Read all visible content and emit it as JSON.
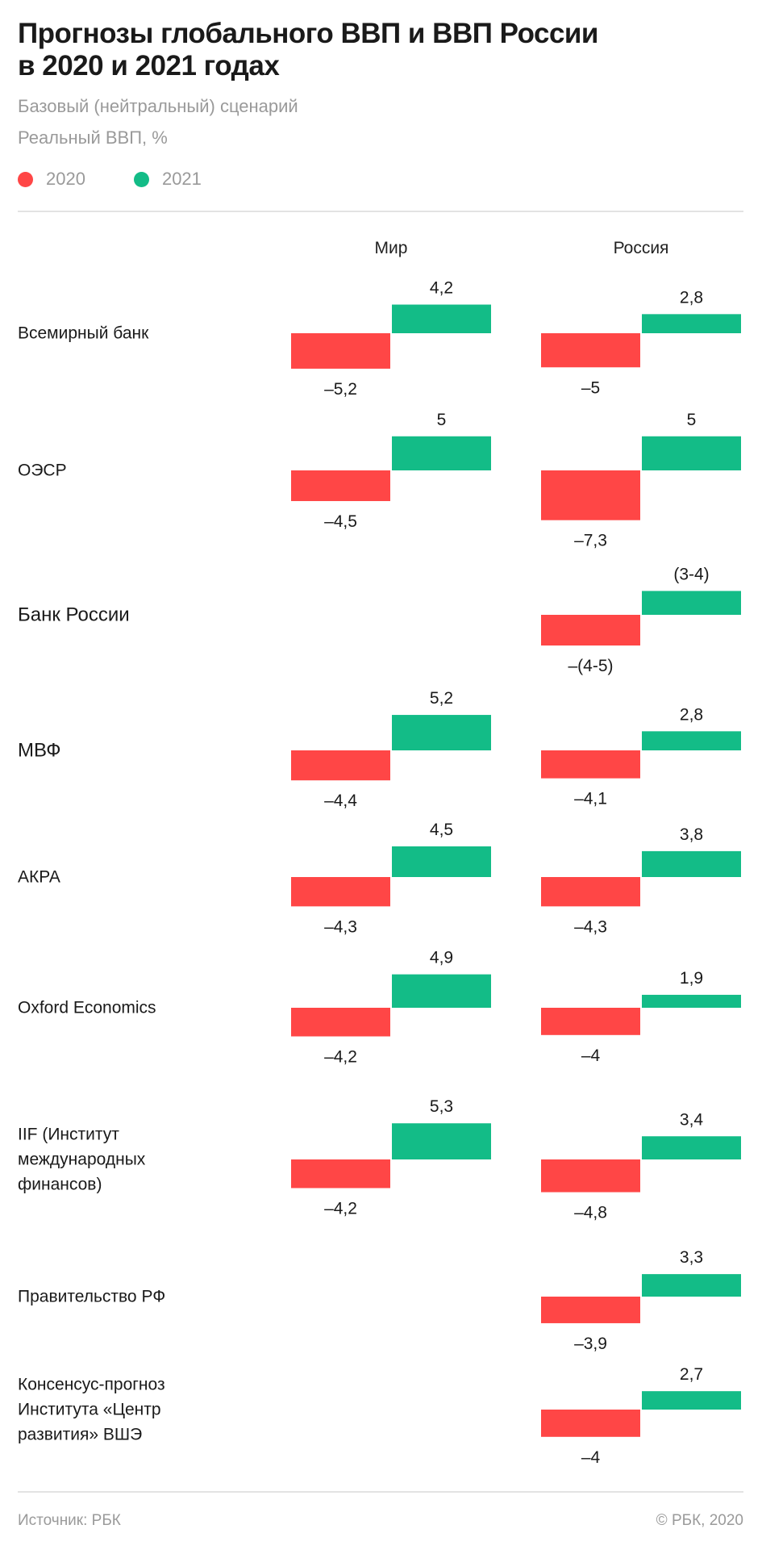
{
  "header": {
    "title_line1": "Прогнозы глобального ВВП и ВВП России",
    "title_line2": "в 2020 и 2021 годах",
    "subtitle": "Базовый (нейтральный) сценарий",
    "unit_note": "Реальный ВВП, %"
  },
  "legend": [
    {
      "label": "2020",
      "color": "#FF4646"
    },
    {
      "label": "2021",
      "color": "#13BC87"
    }
  ],
  "columns": [
    {
      "key": "world",
      "label": "Мир"
    },
    {
      "key": "russia",
      "label": "Россия"
    }
  ],
  "footer": {
    "source": "Источник: РБК",
    "copyright": "© РБК, 2020"
  },
  "chart_data": {
    "type": "bar",
    "title": "Прогнозы глобального ВВП и ВВП России в 2020 и 2021 годах",
    "subtitle": "Базовый (нейтральный) сценарий",
    "ylabel": "Реальный ВВП, %",
    "legend_position": "top-left",
    "series": [
      {
        "name": "2020",
        "color": "#FF4646"
      },
      {
        "name": "2021",
        "color": "#13BC87"
      }
    ],
    "panels": [
      "Мир",
      "Россия"
    ],
    "categories": [
      "Всемирный банк",
      "ОЭСР",
      "Банк России",
      "МВФ",
      "АКРА",
      "Oxford Economics",
      "IIF (Институт\nмеждународных\nфинансов)",
      "Правительство РФ",
      "Консенсус-прогноз\nИнститута «Центр\nразвития» ВШЭ"
    ],
    "rows": [
      {
        "world": {
          "2020": -5.2,
          "2021": 4.2,
          "label_2020": "–5,2",
          "label_2021": "4,2"
        },
        "russia": {
          "2020": -5.0,
          "2021": 2.8,
          "label_2020": "–5",
          "label_2021": "2,8"
        }
      },
      {
        "world": {
          "2020": -4.5,
          "2021": 5.0,
          "label_2020": "–4,5",
          "label_2021": "5"
        },
        "russia": {
          "2020": -7.3,
          "2021": 5.0,
          "label_2020": "–7,3",
          "label_2021": "5"
        }
      },
      {
        "world": null,
        "russia": {
          "2020": -4.5,
          "2021": 3.5,
          "label_2020": "–(4-5)",
          "label_2021": "(3-4)"
        }
      },
      {
        "world": {
          "2020": -4.4,
          "2021": 5.2,
          "label_2020": "–4,4",
          "label_2021": "5,2"
        },
        "russia": {
          "2020": -4.1,
          "2021": 2.8,
          "label_2020": "–4,1",
          "label_2021": "2,8"
        }
      },
      {
        "world": {
          "2020": -4.3,
          "2021": 4.5,
          "label_2020": "–4,3",
          "label_2021": "4,5"
        },
        "russia": {
          "2020": -4.3,
          "2021": 3.8,
          "label_2020": "–4,3",
          "label_2021": "3,8"
        }
      },
      {
        "world": {
          "2020": -4.2,
          "2021": 4.9,
          "label_2020": "–4,2",
          "label_2021": "4,9"
        },
        "russia": {
          "2020": -4.0,
          "2021": 1.9,
          "label_2020": "–4",
          "label_2021": "1,9"
        }
      },
      {
        "world": {
          "2020": -4.2,
          "2021": 5.3,
          "label_2020": "–4,2",
          "label_2021": "5,3"
        },
        "russia": {
          "2020": -4.8,
          "2021": 3.4,
          "label_2020": "–4,8",
          "label_2021": "3,4"
        }
      },
      {
        "world": null,
        "russia": {
          "2020": -3.9,
          "2021": 3.3,
          "label_2020": "–3,9",
          "label_2021": "3,3"
        }
      },
      {
        "world": null,
        "russia": {
          "2020": -4.0,
          "2021": 2.7,
          "label_2020": "–4",
          "label_2021": "2,7"
        }
      }
    ],
    "grid": false
  }
}
